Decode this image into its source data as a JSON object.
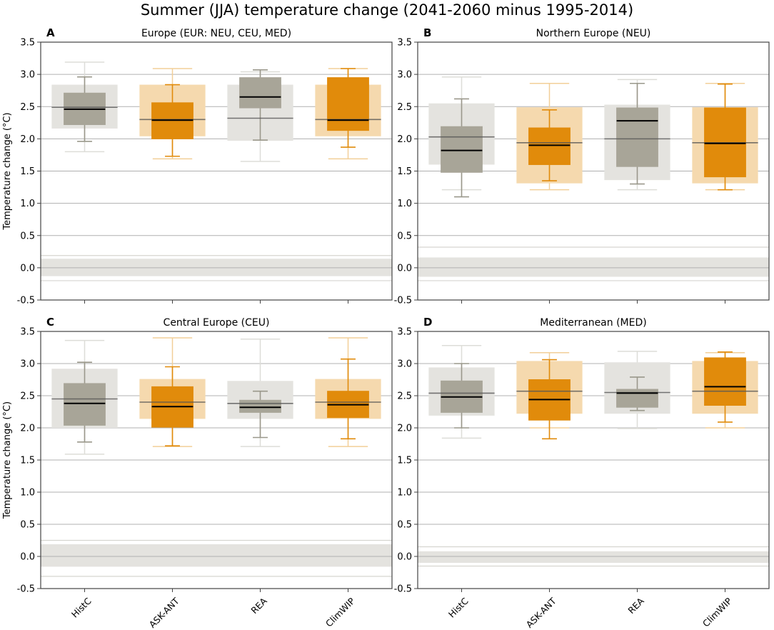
{
  "figure_title": "Summer (JJA) temperature change (2041-2060 minus 1995-2014)",
  "colors": {
    "grey_box": "#a8a598",
    "grey_whisker": "#9a988b",
    "grey_shade": "#e4e3df",
    "orange_box": "#e18b0b",
    "orange_shade": "#f5d9ae",
    "median": "#000000",
    "grid": "#b0b0b0",
    "axis": "#444444"
  },
  "chart_data": [
    {
      "panel_letter": "A",
      "title": "Europe (EUR: NEU, CEU, MED)",
      "type": "box",
      "ylabel": "Temperature change (°C)",
      "ylim": [
        -0.5,
        3.5
      ],
      "yticks": [
        "-0.5",
        "0.0",
        "0.5",
        "1.0",
        "1.5",
        "2.0",
        "2.5",
        "3.0",
        "3.5"
      ],
      "ytick_values": [
        -0.5,
        0.0,
        0.5,
        1.0,
        1.5,
        2.0,
        2.5,
        3.0,
        3.5
      ],
      "categories": [
        "HistC",
        "ASK-ANT",
        "REA",
        "ClimWIP"
      ],
      "zero_band": {
        "inner": [
          -0.13,
          0.14
        ],
        "outer": [
          -0.2,
          0.19
        ]
      },
      "series": [
        {
          "name": "HistC",
          "style": "grey",
          "median": 2.46,
          "q1": 2.22,
          "q3": 2.71,
          "whisker_low": 1.96,
          "whisker_high": 2.96,
          "ref_median": 2.49,
          "ref_q1": 2.16,
          "ref_q3": 2.84,
          "ref_low": 1.8,
          "ref_high": 3.19
        },
        {
          "name": "ASK-ANT",
          "style": "orange",
          "median": 2.29,
          "q1": 2.0,
          "q3": 2.56,
          "whisker_low": 1.73,
          "whisker_high": 2.84,
          "ref_median": 2.3,
          "ref_q1": 2.04,
          "ref_q3": 2.84,
          "ref_low": 1.69,
          "ref_high": 3.09
        },
        {
          "name": "REA",
          "style": "grey",
          "median": 2.65,
          "q1": 2.48,
          "q3": 2.95,
          "whisker_low": 1.98,
          "whisker_high": 3.07,
          "ref_median": 2.32,
          "ref_q1": 1.97,
          "ref_q3": 2.84,
          "ref_low": 1.65,
          "ref_high": 3.04
        },
        {
          "name": "ClimWIP",
          "style": "orange",
          "median": 2.29,
          "q1": 2.13,
          "q3": 2.95,
          "whisker_low": 1.87,
          "whisker_high": 3.09,
          "ref_median": 2.3,
          "ref_q1": 2.04,
          "ref_q3": 2.84,
          "ref_low": 1.69,
          "ref_high": 3.09
        }
      ]
    },
    {
      "panel_letter": "B",
      "title": "Northern Europe (NEU)",
      "type": "box",
      "ylabel": "",
      "ylim": [
        -0.5,
        3.5
      ],
      "yticks": [
        "-0.5",
        "0.0",
        "0.5",
        "1.0",
        "1.5",
        "2.0",
        "2.5",
        "3.0",
        "3.5"
      ],
      "ytick_values": [
        -0.5,
        0.0,
        0.5,
        1.0,
        1.5,
        2.0,
        2.5,
        3.0,
        3.5
      ],
      "categories": [
        "HistC",
        "ASK-ANT",
        "REA",
        "ClimWIP"
      ],
      "zero_band": {
        "inner": [
          -0.14,
          0.16
        ],
        "outer": [
          -0.2,
          0.32
        ]
      },
      "series": [
        {
          "name": "HistC",
          "style": "grey",
          "median": 1.82,
          "q1": 1.48,
          "q3": 2.19,
          "whisker_low": 1.1,
          "whisker_high": 2.62,
          "ref_median": 2.03,
          "ref_q1": 1.6,
          "ref_q3": 2.55,
          "ref_low": 1.21,
          "ref_high": 2.96
        },
        {
          "name": "ASK-ANT",
          "style": "orange",
          "median": 1.9,
          "q1": 1.6,
          "q3": 2.17,
          "whisker_low": 1.35,
          "whisker_high": 2.45,
          "ref_median": 1.94,
          "ref_q1": 1.31,
          "ref_q3": 2.49,
          "ref_low": 1.21,
          "ref_high": 2.86
        },
        {
          "name": "REA",
          "style": "grey",
          "median": 2.28,
          "q1": 1.57,
          "q3": 2.48,
          "whisker_low": 1.3,
          "whisker_high": 2.86,
          "ref_median": 2.0,
          "ref_q1": 1.36,
          "ref_q3": 2.53,
          "ref_low": 1.21,
          "ref_high": 2.92
        },
        {
          "name": "ClimWIP",
          "style": "orange",
          "median": 1.93,
          "q1": 1.41,
          "q3": 2.48,
          "whisker_low": 1.21,
          "whisker_high": 2.85,
          "ref_median": 1.94,
          "ref_q1": 1.31,
          "ref_q3": 2.49,
          "ref_low": 1.21,
          "ref_high": 2.86
        }
      ]
    },
    {
      "panel_letter": "C",
      "title": "Central Europe (CEU)",
      "type": "box",
      "ylabel": "Temperature change (°C)",
      "ylim": [
        -0.5,
        3.5
      ],
      "yticks": [
        "-0.5",
        "0.0",
        "0.5",
        "1.0",
        "1.5",
        "2.0",
        "2.5",
        "3.0",
        "3.5"
      ],
      "ytick_values": [
        -0.5,
        0.0,
        0.5,
        1.0,
        1.5,
        2.0,
        2.5,
        3.0,
        3.5
      ],
      "categories": [
        "HistC",
        "ASK-ANT",
        "REA",
        "ClimWIP"
      ],
      "zero_band": {
        "inner": [
          -0.16,
          0.19
        ],
        "outer": [
          -0.31,
          0.25
        ]
      },
      "series": [
        {
          "name": "HistC",
          "style": "grey",
          "median": 2.38,
          "q1": 2.04,
          "q3": 2.69,
          "whisker_low": 1.78,
          "whisker_high": 3.02,
          "ref_median": 2.45,
          "ref_q1": 2.0,
          "ref_q3": 2.92,
          "ref_low": 1.59,
          "ref_high": 3.36
        },
        {
          "name": "ASK-ANT",
          "style": "orange",
          "median": 2.33,
          "q1": 2.01,
          "q3": 2.64,
          "whisker_low": 1.72,
          "whisker_high": 2.95,
          "ref_median": 2.4,
          "ref_q1": 2.14,
          "ref_q3": 2.76,
          "ref_low": 1.71,
          "ref_high": 3.4
        },
        {
          "name": "REA",
          "style": "grey",
          "median": 2.32,
          "q1": 2.24,
          "q3": 2.43,
          "whisker_low": 1.85,
          "whisker_high": 2.57,
          "ref_median": 2.38,
          "ref_q1": 2.14,
          "ref_q3": 2.73,
          "ref_low": 1.71,
          "ref_high": 3.38
        },
        {
          "name": "ClimWIP",
          "style": "orange",
          "median": 2.36,
          "q1": 2.16,
          "q3": 2.57,
          "whisker_low": 1.83,
          "whisker_high": 3.07,
          "ref_median": 2.4,
          "ref_q1": 2.14,
          "ref_q3": 2.76,
          "ref_low": 1.71,
          "ref_high": 3.4
        }
      ]
    },
    {
      "panel_letter": "D",
      "title": "Mediterranean (MED)",
      "type": "box",
      "ylabel": "",
      "ylim": [
        -0.5,
        3.5
      ],
      "yticks": [
        "-0.5",
        "0.0",
        "0.5",
        "1.0",
        "1.5",
        "2.0",
        "2.5",
        "3.0",
        "3.5"
      ],
      "ytick_values": [
        -0.5,
        0.0,
        0.5,
        1.0,
        1.5,
        2.0,
        2.5,
        3.0,
        3.5
      ],
      "categories": [
        "HistC",
        "ASK-ANT",
        "REA",
        "ClimWIP"
      ],
      "zero_band": {
        "inner": [
          -0.1,
          0.08
        ],
        "outer": [
          -0.15,
          0.15
        ]
      },
      "series": [
        {
          "name": "HistC",
          "style": "grey",
          "median": 2.48,
          "q1": 2.24,
          "q3": 2.73,
          "whisker_low": 2.0,
          "whisker_high": 3.0,
          "ref_median": 2.54,
          "ref_q1": 2.19,
          "ref_q3": 2.94,
          "ref_low": 1.84,
          "ref_high": 3.28
        },
        {
          "name": "ASK-ANT",
          "style": "orange",
          "median": 2.44,
          "q1": 2.12,
          "q3": 2.75,
          "whisker_low": 1.83,
          "whisker_high": 3.06,
          "ref_median": 2.57,
          "ref_q1": 2.22,
          "ref_q3": 3.04,
          "ref_low": 2.0,
          "ref_high": 3.17
        },
        {
          "name": "REA",
          "style": "grey",
          "median": 2.54,
          "q1": 2.32,
          "q3": 2.6,
          "whisker_low": 2.27,
          "whisker_high": 2.79,
          "ref_median": 2.55,
          "ref_q1": 2.22,
          "ref_q3": 3.02,
          "ref_low": 1.99,
          "ref_high": 3.19
        },
        {
          "name": "ClimWIP",
          "style": "orange",
          "median": 2.64,
          "q1": 2.35,
          "q3": 3.09,
          "whisker_low": 2.09,
          "whisker_high": 3.18,
          "ref_median": 2.57,
          "ref_q1": 2.22,
          "ref_q3": 3.04,
          "ref_low": 2.0,
          "ref_high": 3.17
        }
      ]
    }
  ]
}
